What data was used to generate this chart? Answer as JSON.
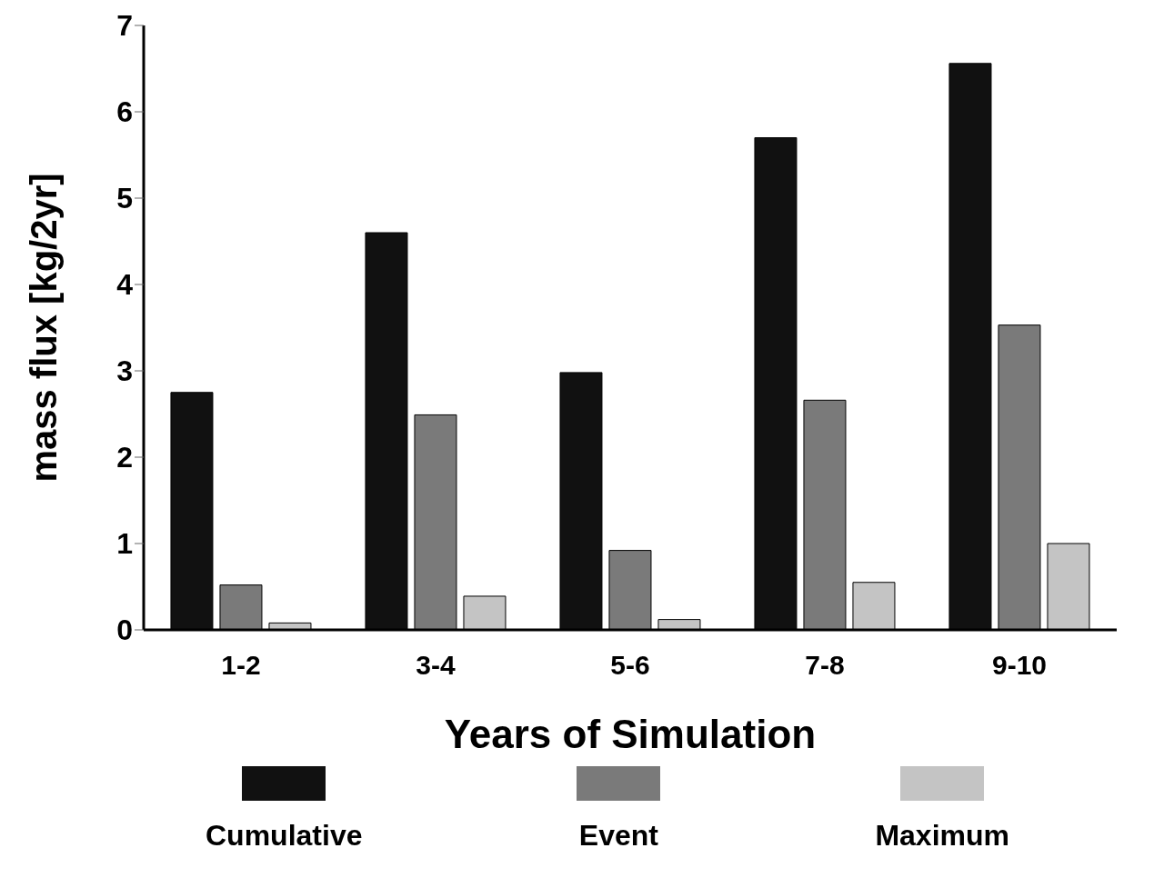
{
  "chart_data": {
    "type": "bar",
    "xlabel": "Years of Simulation",
    "ylabel": "mass flux  [kg/2yr]",
    "categories": [
      "1-2",
      "3-4",
      "5-6",
      "7-8",
      "9-10"
    ],
    "series": [
      {
        "name": "Cumulative",
        "color": "#111111",
        "values": [
          2.75,
          4.6,
          2.98,
          5.7,
          6.56
        ]
      },
      {
        "name": "Event",
        "color": "#7a7a7a",
        "values": [
          0.52,
          2.49,
          0.92,
          2.66,
          3.53
        ]
      },
      {
        "name": "Maximum",
        "color": "#c4c4c4",
        "values": [
          0.08,
          0.39,
          0.12,
          0.55,
          1.0
        ]
      }
    ],
    "ylim": [
      0,
      7
    ],
    "yticks": [
      0,
      1,
      2,
      3,
      4,
      5,
      6,
      7
    ],
    "legend": "bottom"
  }
}
